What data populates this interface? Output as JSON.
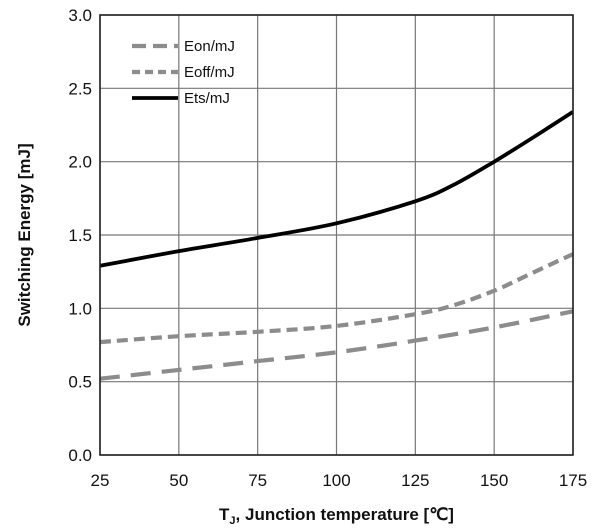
{
  "chart_data": {
    "type": "line",
    "title": "",
    "xlabel": "T",
    "xlabel_sub": "J",
    "xlabel_rest": ", Junction temperature [℃]",
    "ylabel": "Switching Energy [mJ]",
    "xlim": [
      25,
      175
    ],
    "ylim": [
      0,
      3.0
    ],
    "xticks": [
      25,
      50,
      75,
      100,
      125,
      150,
      175
    ],
    "xtick_labels": [
      "25",
      "50",
      "75",
      "100",
      "125",
      "150",
      "175"
    ],
    "yticks": [
      0,
      0.5,
      1.0,
      1.5,
      2.0,
      2.5,
      3.0
    ],
    "ytick_labels": [
      "0.0",
      "0.5",
      "1.0",
      "1.5",
      "2.0",
      "2.5",
      "3.0"
    ],
    "grid": true,
    "legend_position": "top-left",
    "series": [
      {
        "name": "Eon/mJ",
        "color": "#8c8c8c",
        "style": "long-dash",
        "x": [
          25,
          50,
          75,
          100,
          125,
          150,
          175
        ],
        "y": [
          0.52,
          0.58,
          0.64,
          0.7,
          0.78,
          0.87,
          0.98
        ]
      },
      {
        "name": "Eoff/mJ",
        "color": "#8c8c8c",
        "style": "short-dash",
        "x": [
          25,
          50,
          75,
          100,
          125,
          137,
          150,
          162,
          175
        ],
        "y": [
          0.77,
          0.81,
          0.84,
          0.88,
          0.96,
          1.02,
          1.12,
          1.24,
          1.37
        ]
      },
      {
        "name": "Ets/mJ",
        "color": "#000000",
        "style": "solid",
        "x": [
          25,
          50,
          75,
          100,
          125,
          137,
          150,
          162,
          175
        ],
        "y": [
          1.29,
          1.39,
          1.48,
          1.58,
          1.73,
          1.84,
          2.0,
          2.16,
          2.34
        ]
      }
    ]
  }
}
